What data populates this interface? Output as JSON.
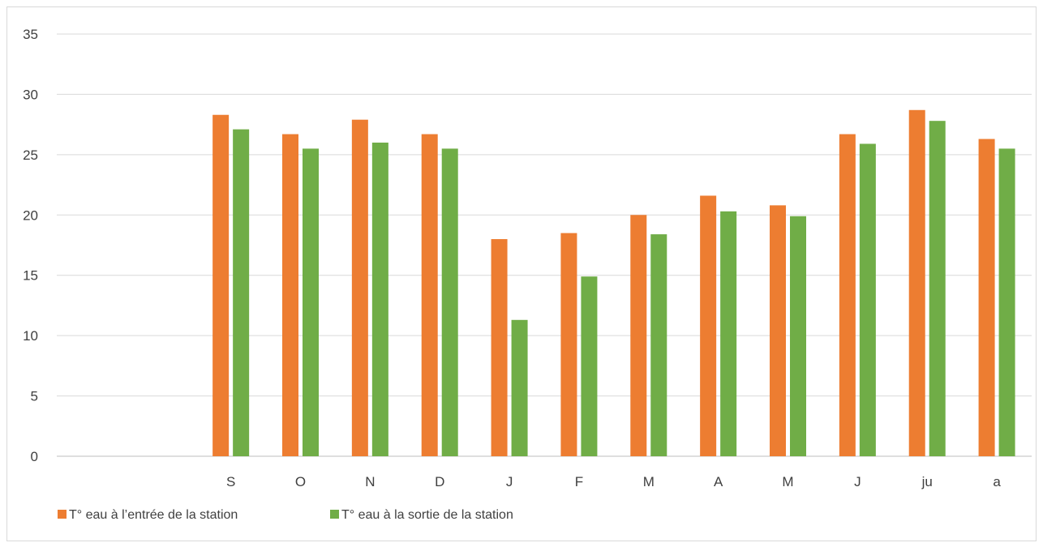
{
  "chart_data": {
    "type": "bar",
    "title": "",
    "xlabel": "",
    "ylabel": "",
    "categories": [
      "",
      "",
      "S",
      "O",
      "N",
      "D",
      "J",
      "F",
      "M",
      "A",
      "M",
      "J",
      "ju",
      "a"
    ],
    "series": [
      {
        "name": "T° eau à l’entrée de la station",
        "color": "#ED7D31",
        "values": [
          null,
          null,
          28.3,
          26.7,
          27.9,
          26.7,
          18.0,
          18.5,
          20.0,
          21.6,
          20.8,
          26.7,
          28.7,
          26.3
        ]
      },
      {
        "name": "T° eau à la sortie de la station",
        "color": "#70AD47",
        "values": [
          null,
          null,
          27.1,
          25.5,
          26.0,
          25.5,
          11.3,
          14.9,
          18.4,
          20.3,
          19.9,
          25.9,
          27.8,
          25.5
        ]
      }
    ],
    "ylim": [
      0,
      35
    ],
    "yticks": [
      0,
      5,
      10,
      15,
      20,
      25,
      30,
      35
    ],
    "grid": true,
    "legend_position": "bottom-left",
    "gridline_color": "#d9d9d9",
    "axis_color": "#bfbfbf"
  }
}
